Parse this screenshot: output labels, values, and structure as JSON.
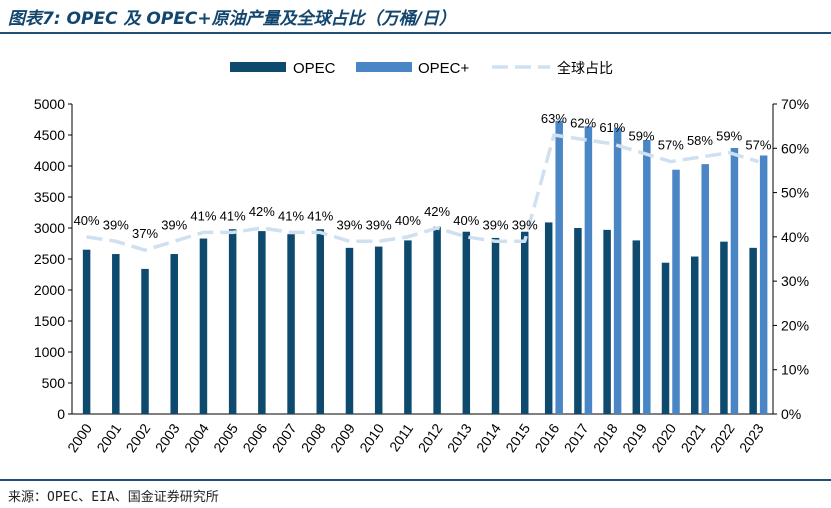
{
  "title": "图表7: OPEC 及 OPEC+原油产量及全球占比（万桶/日）",
  "source": "来源：OPEC、EIA、国金证券研究所",
  "colors": {
    "opec": "#0d4a6e",
    "opec_plus": "#4a86c5",
    "share": "#cfe0f0",
    "header_rule": "#1f4e79"
  },
  "chart_data": {
    "type": "bar",
    "categories": [
      "2000",
      "2001",
      "2002",
      "2003",
      "2004",
      "2005",
      "2006",
      "2007",
      "2008",
      "2009",
      "2010",
      "2011",
      "2012",
      "2013",
      "2014",
      "2015",
      "2016",
      "2017",
      "2018",
      "2019",
      "2020",
      "2021",
      "2022",
      "2023"
    ],
    "series": [
      {
        "name": "OPEC",
        "type": "bar",
        "axis": "left",
        "values": [
          2650,
          2580,
          2340,
          2580,
          2830,
          2980,
          2950,
          2900,
          2980,
          2680,
          2700,
          2800,
          3020,
          2940,
          2840,
          2940,
          3090,
          3000,
          2970,
          2800,
          2440,
          2540,
          2780,
          2680
        ]
      },
      {
        "name": "OPEC+",
        "type": "bar",
        "axis": "left",
        "values": [
          null,
          null,
          null,
          null,
          null,
          null,
          null,
          null,
          null,
          null,
          null,
          null,
          null,
          null,
          null,
          null,
          4730,
          4640,
          4610,
          4420,
          3940,
          4030,
          4290,
          4170
        ]
      },
      {
        "name": "全球占比",
        "type": "line",
        "style": "dashed",
        "axis": "right",
        "values": [
          40,
          39,
          37,
          39,
          41,
          41,
          42,
          41,
          41,
          39,
          39,
          40,
          42,
          40,
          39,
          39,
          63,
          62,
          61,
          59,
          57,
          58,
          59,
          57
        ]
      }
    ],
    "data_labels": [
      "40%",
      "39%",
      "37%",
      "39%",
      "41%",
      "41%",
      "42%",
      "41%",
      "41%",
      "39%",
      "39%",
      "40%",
      "42%",
      "40%",
      "39%",
      "39%",
      "63%",
      "62%",
      "61%",
      "59%",
      "57%",
      "58%",
      "59%",
      "57%"
    ],
    "left_axis": {
      "ylim": [
        0,
        5000
      ],
      "ticks": [
        "0",
        "500",
        "1000",
        "1500",
        "2000",
        "2500",
        "3000",
        "3500",
        "4000",
        "4500",
        "5000"
      ]
    },
    "right_axis": {
      "ylim": [
        0,
        70
      ],
      "ticks": [
        "0%",
        "10%",
        "20%",
        "30%",
        "40%",
        "50%",
        "60%",
        "70%"
      ]
    },
    "legend": {
      "position": "top-center",
      "items": [
        "OPEC",
        "OPEC+",
        "全球占比"
      ]
    },
    "grid": false
  }
}
